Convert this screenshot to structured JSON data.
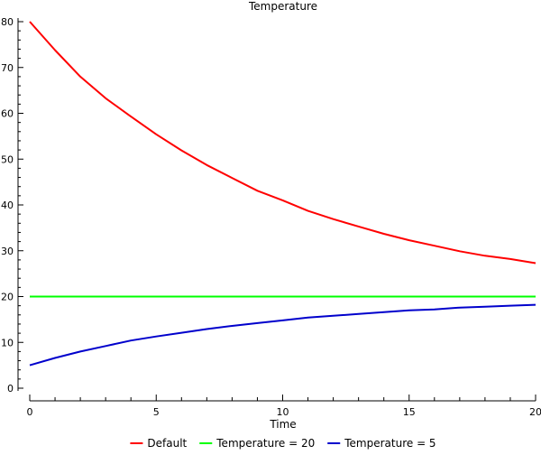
{
  "chart_data": {
    "type": "line",
    "title": "Temperature",
    "xlabel": "Time",
    "ylabel": "",
    "xlim": [
      0,
      20
    ],
    "ylim": [
      0,
      80
    ],
    "x_ticks": [
      0,
      5,
      10,
      15,
      20
    ],
    "y_ticks": [
      0,
      10,
      20,
      30,
      40,
      50,
      60,
      70,
      80
    ],
    "grid": false,
    "legend_position": "bottom",
    "x": [
      0,
      1,
      2,
      3,
      4,
      5,
      6,
      7,
      8,
      9,
      10,
      11,
      12,
      13,
      14,
      15,
      16,
      17,
      18,
      19,
      20
    ],
    "series": [
      {
        "name": "Default",
        "color": "#ff0000",
        "values": [
          80.0,
          73.8,
          68.0,
          63.3,
          59.3,
          55.4,
          51.9,
          48.7,
          45.9,
          43.1,
          41.0,
          38.7,
          36.9,
          35.3,
          33.7,
          32.3,
          31.1,
          29.9,
          28.9,
          28.2,
          27.3
        ]
      },
      {
        "name": "Temperature = 20",
        "color": "#00ff00",
        "values": [
          20,
          20,
          20,
          20,
          20,
          20,
          20,
          20,
          20,
          20,
          20,
          20,
          20,
          20,
          20,
          20,
          20,
          20,
          20,
          20,
          20
        ]
      },
      {
        "name": "Temperature = 5",
        "color": "#0000cc",
        "values": [
          5.0,
          6.6,
          8.0,
          9.2,
          10.4,
          11.3,
          12.1,
          12.9,
          13.6,
          14.2,
          14.8,
          15.4,
          15.8,
          16.2,
          16.6,
          17.0,
          17.2,
          17.6,
          17.8,
          18.0,
          18.2
        ]
      }
    ]
  }
}
